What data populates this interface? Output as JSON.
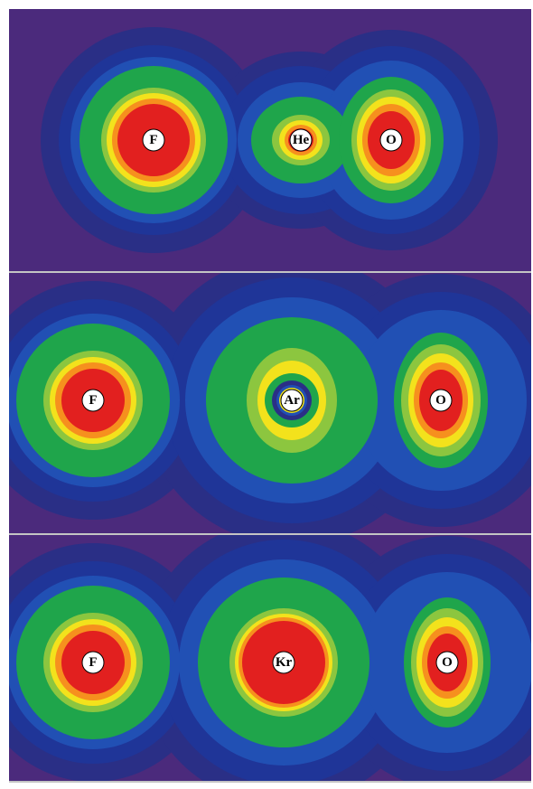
{
  "panels": [
    {
      "atoms": [
        "F",
        "He",
        "O"
      ]
    },
    {
      "atoms": [
        "F",
        "Ar",
        "O"
      ]
    },
    {
      "atoms": [
        "F",
        "Kr",
        "O"
      ]
    }
  ]
}
